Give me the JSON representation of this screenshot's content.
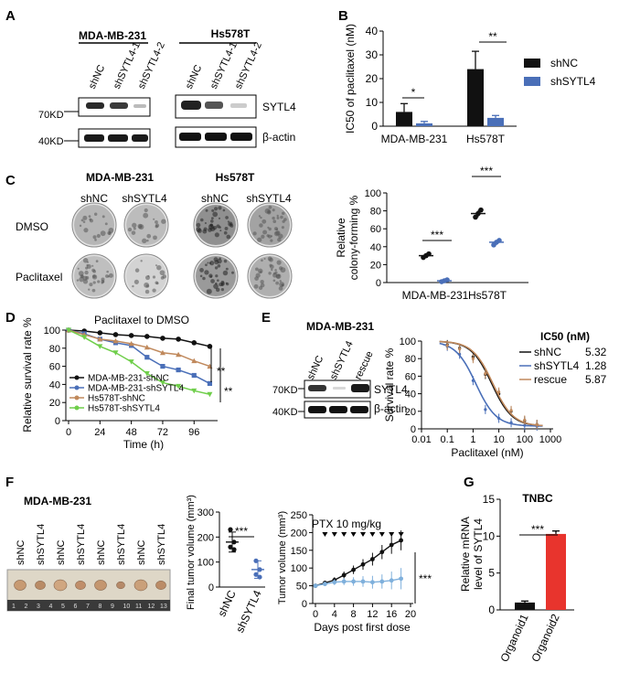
{
  "panelA": {
    "label": "A",
    "cell1": "MDA-MB-231",
    "cell2": "Hs578T",
    "lanes1": [
      "shNC",
      "shSYTL4-1",
      "shSYTL4-2"
    ],
    "lanes2": [
      "shNC",
      "shSYTL4-1",
      "shSYTL4-2"
    ],
    "mw1": "70KD",
    "mw2": "40KD",
    "prot1": "SYTL4",
    "prot2": "β-actin"
  },
  "panelB": {
    "label": "B",
    "legend": [
      "shNC",
      "shSYTL4"
    ],
    "sig": [
      "*",
      "**"
    ]
  },
  "panelC": {
    "label": "C",
    "cell1": "MDA-MB-231",
    "cell2": "Hs578T",
    "cols": [
      "shNC",
      "shSYTL4",
      "shNC",
      "shSYTL4"
    ],
    "rows": [
      "DMSO",
      "Paclitaxel"
    ],
    "sig": [
      "***",
      "***"
    ]
  },
  "panelD": {
    "label": "D",
    "title": "Paclitaxel to DMSO",
    "sig": [
      "**",
      "**"
    ]
  },
  "panelE": {
    "label": "E",
    "title": "MDA-MB-231",
    "lanes": [
      "shNC",
      "shSYTL4",
      "rescue"
    ],
    "mw1": "70KD",
    "mw2": "40KD",
    "prot1": "SYTL4",
    "prot2": "β-actin",
    "ic50_header": "IC50 (nM)",
    "ic50_rows": [
      {
        "name": "shNC",
        "value": "5.32"
      },
      {
        "name": "shSYTL4",
        "value": "1.28"
      },
      {
        "name": "rescue",
        "value": "5.87"
      }
    ]
  },
  "panelF": {
    "label": "F",
    "title": "MDA-MB-231",
    "lanes": [
      "shNC",
      "shSYTL4",
      "shNC",
      "shSYTL4",
      "shNC",
      "shSYTL4",
      "shNC",
      "shSYTL4"
    ],
    "sig1": "***",
    "sig2": "***",
    "ptx_label": "PTX 10 mg/kg"
  },
  "panelG": {
    "label": "G",
    "sig": "***"
  },
  "colors": {
    "black": "#111111",
    "blue": "#4a6fb8",
    "brown": "#c0895c",
    "green": "#6fce4a",
    "red": "#e8342d",
    "lightblue": "#7fb0dc",
    "navy": "#23409a"
  },
  "chart_data": [
    {
      "id": "B",
      "type": "bar",
      "title": "",
      "xlabel": "",
      "ylabel": "IC50 of paclitaxel (nM)",
      "ylim": [
        0,
        40
      ],
      "yticks": [
        0,
        10,
        20,
        30,
        40
      ],
      "categories": [
        "MDA-MB-231",
        "Hs578T"
      ],
      "series": [
        {
          "name": "shNC",
          "values": [
            6,
            24
          ],
          "errors": [
            3.5,
            7.5
          ],
          "color": "#111111"
        },
        {
          "name": "shSYTL4",
          "values": [
            1.2,
            3.5
          ],
          "errors": [
            0.8,
            1.0
          ],
          "color": "#4a6fb8"
        }
      ],
      "legend": "right"
    },
    {
      "id": "C",
      "type": "scatter",
      "xlabel": "",
      "ylabel": "Relative colony-forming %",
      "ylim": [
        0,
        100
      ],
      "yticks": [
        0,
        20,
        40,
        60,
        80,
        100
      ],
      "categories": [
        "MDA-MB-231",
        "Hs578T"
      ],
      "series": [
        {
          "name": "shNC",
          "means": [
            30,
            77
          ],
          "points": [
            [
              28,
              30,
              32
            ],
            [
              73,
              77,
              81
            ]
          ],
          "color": "#111111"
        },
        {
          "name": "shSYTL4",
          "means": [
            2,
            45
          ],
          "points": [
            [
              1,
              2,
              3
            ],
            [
              42,
              45,
              47
            ]
          ],
          "color": "#4a6fb8"
        }
      ]
    },
    {
      "id": "D",
      "type": "line",
      "xlabel": "Time (h)",
      "ylabel": "Relative survival rate %",
      "xlim": [
        0,
        114
      ],
      "ylim": [
        0,
        100
      ],
      "xticks": [
        0,
        24,
        48,
        72,
        96
      ],
      "yticks": [
        0,
        20,
        40,
        60,
        80,
        100
      ],
      "x": [
        0,
        12,
        24,
        36,
        48,
        60,
        72,
        84,
        96,
        108
      ],
      "series": [
        {
          "name": "MDA-MB-231-shNC",
          "values": [
            100,
            99,
            97,
            95,
            94,
            93,
            91,
            90,
            86,
            82
          ],
          "color": "#111111",
          "marker": "circle"
        },
        {
          "name": "MDA-MB-231-shSYTL4",
          "values": [
            100,
            96,
            90,
            86,
            83,
            70,
            60,
            56,
            50,
            41
          ],
          "color": "#4a6fb8",
          "marker": "square"
        },
        {
          "name": "Hs578T-shNC",
          "values": [
            100,
            95,
            90,
            88,
            85,
            81,
            75,
            73,
            66,
            60
          ],
          "color": "#c0895c",
          "marker": "triangle"
        },
        {
          "name": "Hs578T-shSYTL4",
          "values": [
            100,
            92,
            82,
            75,
            65,
            52,
            42,
            38,
            33,
            29
          ],
          "color": "#6fce4a",
          "marker": "triangle-down"
        }
      ]
    },
    {
      "id": "E",
      "type": "line",
      "xlabel": "Paclitaxel (nM)",
      "ylabel": "Survival rate %",
      "xscale": "log",
      "xlim": [
        0.01,
        1000
      ],
      "ylim": [
        0,
        100
      ],
      "xticks": [
        0.01,
        0.1,
        1,
        10,
        100,
        1000
      ],
      "xticklabels": [
        "0.01",
        "0.1",
        "1",
        "10",
        "100",
        "1000"
      ],
      "yticks": [
        0,
        20,
        40,
        60,
        80,
        100
      ],
      "x": [
        0.1,
        0.3,
        1,
        3,
        10,
        30,
        100,
        300
      ],
      "series": [
        {
          "name": "shNC",
          "ic50": 5.32,
          "values": [
            96,
            92,
            82,
            62,
            40,
            20,
            9,
            5
          ],
          "color": "#111111"
        },
        {
          "name": "shSYTL4",
          "ic50": 1.28,
          "values": [
            94,
            85,
            55,
            22,
            12,
            7,
            4,
            3
          ],
          "color": "#4a6fb8"
        },
        {
          "name": "rescue",
          "ic50": 5.87,
          "values": [
            95,
            91,
            80,
            63,
            42,
            21,
            10,
            5
          ],
          "color": "#c0895c"
        }
      ]
    },
    {
      "id": "F-final",
      "type": "scatter",
      "ylabel": "Final tumor volume (mm³)",
      "ylim": [
        0,
        300
      ],
      "yticks": [
        0,
        100,
        200,
        300
      ],
      "categories": [
        "shNC",
        "shSYTL4"
      ],
      "series": [
        {
          "name": "shNC",
          "mean": 180,
          "sd": 40,
          "points": [
            230,
            180,
            160,
            150
          ],
          "color": "#111111"
        },
        {
          "name": "shSYTL4",
          "mean": 70,
          "sd": 35,
          "points": [
            105,
            70,
            50,
            40
          ],
          "color": "#4a6fb8"
        }
      ]
    },
    {
      "id": "F-growth",
      "type": "line",
      "xlabel": "Days post first dose",
      "ylabel": "Tumor volume (mm³)",
      "xlim": [
        0,
        20
      ],
      "ylim": [
        0,
        250
      ],
      "xticks": [
        0,
        4,
        8,
        12,
        16,
        20
      ],
      "yticks": [
        0,
        50,
        100,
        150,
        200,
        250
      ],
      "x": [
        0,
        2,
        4,
        6,
        8,
        10,
        12,
        14,
        16,
        18
      ],
      "dosing_days": [
        2,
        4,
        6,
        8,
        10,
        12,
        14,
        16,
        18
      ],
      "series": [
        {
          "name": "shNC",
          "values": [
            50,
            58,
            66,
            80,
            95,
            110,
            125,
            145,
            165,
            178
          ],
          "errors": [
            5,
            6,
            8,
            10,
            12,
            15,
            18,
            20,
            25,
            28
          ],
          "color": "#111111"
        },
        {
          "name": "shSYTL4",
          "values": [
            50,
            55,
            60,
            62,
            62,
            62,
            60,
            62,
            65,
            70
          ],
          "errors": [
            5,
            6,
            8,
            10,
            12,
            15,
            18,
            20,
            25,
            30
          ],
          "color": "#7fb0dc"
        }
      ]
    },
    {
      "id": "G",
      "type": "bar",
      "title": "TNBC",
      "ylabel": "Relative mRNA level of SYTL4",
      "ylim": [
        0,
        15
      ],
      "yticks": [
        0,
        5,
        10,
        15
      ],
      "categories": [
        "Organoid1",
        "Organoid2"
      ],
      "values": [
        1,
        10.3
      ],
      "errors": [
        0.2,
        0.4
      ],
      "colors": [
        "#111111",
        "#e8342d"
      ]
    }
  ]
}
